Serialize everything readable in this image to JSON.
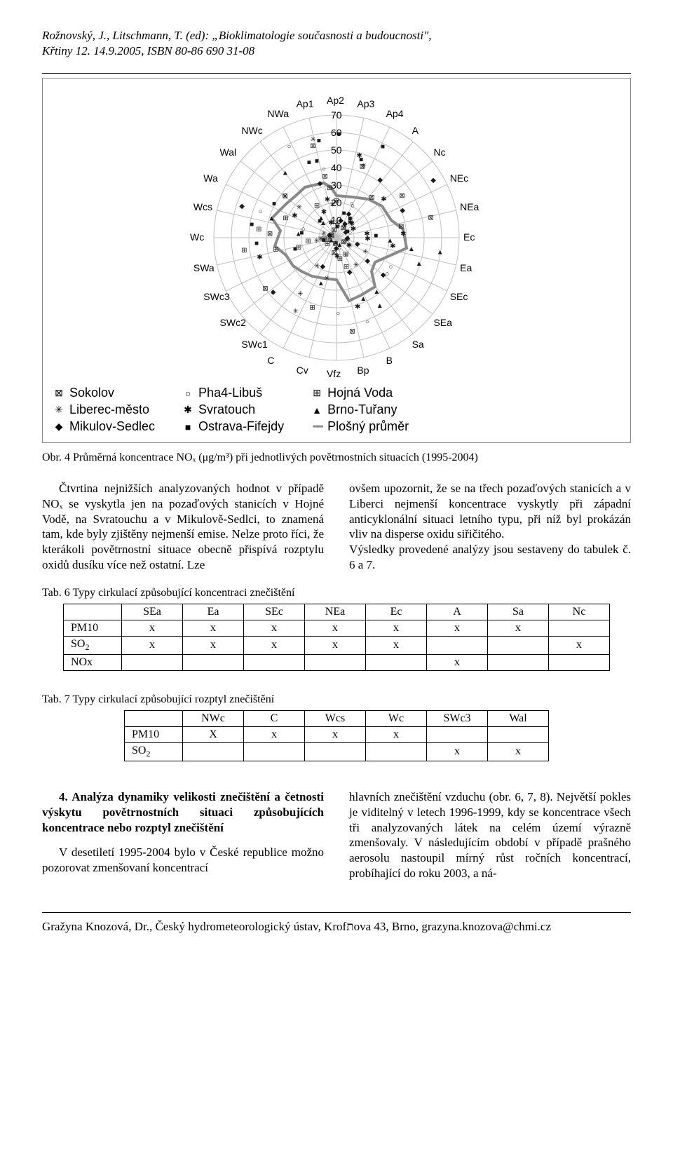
{
  "header": {
    "line1": "Rožnovský, J., Litschmann, T. (ed): „Bioklimatologie současnosti a budoucnosti\",",
    "line2": "Křtiny 12. 14.9.2005, ISBN 80-86 690 31-08"
  },
  "radar": {
    "axis_labels": [
      "Ap2",
      "Ap3",
      "Ap4",
      "A",
      "Nc",
      "NEc",
      "NEa",
      "Ec",
      "Ea",
      "SEc",
      "SEa",
      "Sa",
      "B",
      "Bp",
      "Vfz",
      "Cv",
      "C",
      "SWc1",
      "SWc2",
      "SWc3",
      "SWa",
      "Wc",
      "Wcs",
      "Wa",
      "Wal",
      "NWc",
      "NWa",
      "Ap1"
    ],
    "ticks": [
      "70",
      "60",
      "50",
      "40",
      "30",
      "20",
      "10"
    ],
    "ring_color": "#bfbfbf",
    "thick_line_color": "#8a8a8a",
    "legend": {
      "col1": [
        {
          "marker": "⊠",
          "label": "Sokolov"
        },
        {
          "marker": "✳",
          "label": "Liberec-město"
        },
        {
          "marker": "◆",
          "label": "Mikulov-Sedlec"
        }
      ],
      "col2": [
        {
          "marker": "○",
          "label": "Pha4-Libuš"
        },
        {
          "marker": "✱",
          "label": "Svratouch"
        },
        {
          "marker": "■",
          "label": "Ostrava-Fifejdy"
        }
      ],
      "col3": [
        {
          "marker": "⊞",
          "label": "Hojná Voda"
        },
        {
          "marker": "▲",
          "label": "Brno-Tuřany"
        },
        {
          "marker": "━",
          "label": "Plošný průměr"
        }
      ]
    }
  },
  "figcaption": "Obr. 4 Průměrná koncentrace NOₓ (μg/m³) při jednotlivých povětrnostních situacích (1995-2004)",
  "body": {
    "left": "Čtvrtina nejnižších analyzovaných hodnot v případě NOₓ se vyskytla jen na pozaďových stanicích v Hojné Vodě, na Svratouchu a v Mikulově-Sedlci, to znamená tam, kde byly zjištěny nejmenší emise. Nelze proto říci, že kterákoli povětrnostní situace obecně přispívá rozptylu oxidů dusíku více než ostatní. Lze",
    "right": "ovšem upozornit, že se na třech pozaďových stanicích a v Liberci nejmenší koncentrace vyskytly při západní anticyklonální situaci letního typu, při níž byl prokázán vliv na disperse oxidu siřičitého.\n     Výsledky provedené analýzy jsou sestaveny do tabulek č. 6 a 7."
  },
  "table6": {
    "caption": "Tab. 6 Typy cirkulací způsobující koncentraci znečištění",
    "columns": [
      "SEa",
      "Ea",
      "SEc",
      "NEa",
      "Ec",
      "A",
      "Sa",
      "Nc"
    ],
    "rows": [
      {
        "hdr": "PM10",
        "cells": [
          "x",
          "x",
          "x",
          "x",
          "x",
          "x",
          "x",
          ""
        ]
      },
      {
        "hdr": "SO₂",
        "cells": [
          "x",
          "x",
          "x",
          "x",
          "x",
          "",
          "",
          "x"
        ]
      },
      {
        "hdr": "NOx",
        "cells": [
          "",
          "",
          "",
          "",
          "",
          "x",
          "",
          ""
        ]
      }
    ]
  },
  "table7": {
    "caption": "Tab. 7 Typy cirkulací způsobující rozptyl znečištění",
    "columns": [
      "NWc",
      "C",
      "Wcs",
      "Wc",
      "SWc3",
      "Wal"
    ],
    "rows": [
      {
        "hdr": "PM10",
        "cells": [
          "X",
          "x",
          "x",
          "x",
          "",
          ""
        ]
      },
      {
        "hdr": "SO₂",
        "cells": [
          "",
          "",
          "",
          "",
          "x",
          "x"
        ]
      }
    ]
  },
  "section4": {
    "heading_left": "4. Analýza dynamiky velikosti znečištění a četnosti výskytu povětrnostních situaci způsobujících koncentrace nebo rozptyl znečištění",
    "para_left": "V desetiletí 1995-2004 bylo v České republice možno pozorovat zmenšovaní koncentrací",
    "para_right": "hlavních znečištění vzduchu (obr. 6, 7, 8). Největší pokles je viditelný v letech 1996-1999, kdy se koncentrace všech tři analyzovaných látek na celém území výrazně zmenšovaly. V následujícím období v případě prašného aerosolu nastoupil mírný růst ročních koncentrací, probíhající do roku 2003, a ná-"
  },
  "footer": "Gražyna Knozová, Dr., Český hydrometeorologický ústav, Krofתova 43, Brno, grazyna.knozova@chmi.cz"
}
